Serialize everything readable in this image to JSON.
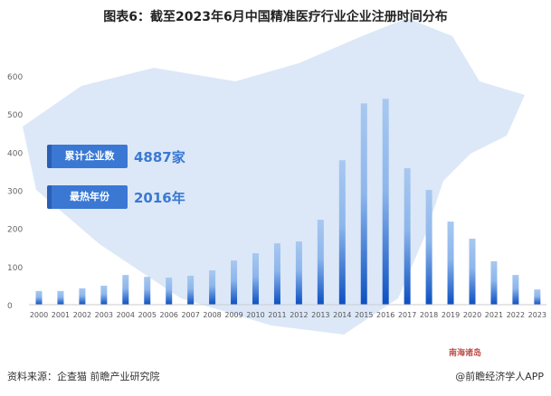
{
  "title": "图表6：截至2023年6月中国精准医疗行业企业注册时间分布",
  "annotations": {
    "total_label": "累计企业数",
    "total_value": "4887家",
    "peak_label": "最热年份",
    "peak_value": "2016年",
    "map_label": "南海诸岛"
  },
  "footer": {
    "source": "资料来源：企查猫 前瞻产业研究院",
    "brand": "@前瞻经济学人APP"
  },
  "colors": {
    "bar_top": "#a8c8f0",
    "bar_bottom": "#0b4fc0",
    "map": "#dce8f7",
    "accent": "#3a78d4"
  },
  "chart_data": {
    "type": "bar",
    "title": "",
    "xlabel": "",
    "ylabel": "",
    "ylim": [
      0,
      600
    ],
    "yticks": [
      0,
      100,
      200,
      300,
      400,
      500,
      600
    ],
    "grid": false,
    "legend": "none",
    "categories": [
      "2000",
      "2001",
      "2002",
      "2003",
      "2004",
      "2005",
      "2006",
      "2007",
      "2008",
      "2009",
      "2010",
      "2011",
      "2012",
      "2013",
      "2014",
      "2015",
      "2016",
      "2017",
      "2018",
      "2019",
      "2020",
      "2021",
      "2022",
      "2023"
    ],
    "values": [
      36,
      36,
      43,
      50,
      78,
      73,
      71,
      76,
      90,
      116,
      135,
      161,
      166,
      223,
      379,
      528,
      540,
      358,
      301,
      218,
      173,
      114,
      78,
      40
    ]
  }
}
